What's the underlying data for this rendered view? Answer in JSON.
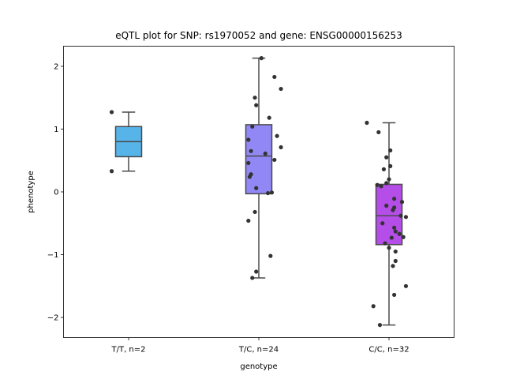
{
  "chart_data": {
    "type": "boxplot",
    "title": "eQTL plot for SNP: rs1970052 and gene: ENSG00000156253",
    "xlabel": "genotype",
    "ylabel": "phenotype",
    "ylim": [
      -2.32,
      2.32
    ],
    "yticks": [
      -2,
      -1,
      0,
      1,
      2
    ],
    "ytick_labels": [
      "−2",
      "−1",
      "0",
      "1",
      "2"
    ],
    "categories": [
      "T/T, n=2",
      "T/C, n=24",
      "C/C, n=32"
    ],
    "grid": false,
    "boxes": [
      {
        "color": "#56b4e9",
        "q1": 0.56,
        "median": 0.8,
        "q3": 1.04,
        "whisker_low": 0.33,
        "whisker_high": 1.27
      },
      {
        "color": "#9288f5",
        "q1": -0.03,
        "median": 0.57,
        "q3": 1.07,
        "whisker_low": -1.37,
        "whisker_high": 2.13
      },
      {
        "color": "#b54de8",
        "q1": -0.84,
        "median": -0.38,
        "q3": 0.12,
        "whisker_low": -2.12,
        "whisker_high": 1.1
      }
    ],
    "points": [
      [
        [
          -0.13,
          1.27
        ],
        [
          -0.13,
          0.33
        ]
      ],
      [
        [
          0.02,
          2.13
        ],
        [
          0.12,
          1.83
        ],
        [
          0.17,
          1.64
        ],
        [
          -0.03,
          1.5
        ],
        [
          -0.02,
          1.38
        ],
        [
          0.08,
          1.18
        ],
        [
          -0.05,
          1.04
        ],
        [
          0.14,
          0.89
        ],
        [
          -0.08,
          0.83
        ],
        [
          0.17,
          0.71
        ],
        [
          -0.06,
          0.65
        ],
        [
          0.05,
          0.61
        ],
        [
          0.12,
          0.51
        ],
        [
          -0.08,
          0.46
        ],
        [
          -0.06,
          0.28
        ],
        [
          -0.07,
          0.24
        ],
        [
          -0.02,
          0.06
        ],
        [
          0.07,
          -0.02
        ],
        [
          -0.03,
          -0.32
        ],
        [
          -0.08,
          -0.46
        ],
        [
          0.09,
          -1.02
        ],
        [
          -0.02,
          -1.27
        ],
        [
          -0.05,
          -1.37
        ],
        [
          0.1,
          -0.01
        ]
      ],
      [
        [
          -0.17,
          1.1
        ],
        [
          -0.08,
          0.95
        ],
        [
          0.01,
          0.66
        ],
        [
          -0.02,
          0.55
        ],
        [
          0.01,
          0.41
        ],
        [
          -0.04,
          0.36
        ],
        [
          0.0,
          0.2
        ],
        [
          -0.02,
          0.14
        ],
        [
          -0.09,
          0.11
        ],
        [
          -0.06,
          0.09
        ],
        [
          0.1,
          -0.16
        ],
        [
          0.04,
          -0.11
        ],
        [
          -0.02,
          -0.22
        ],
        [
          0.04,
          -0.25
        ],
        [
          0.03,
          -0.29
        ],
        [
          0.09,
          -0.38
        ],
        [
          0.13,
          -0.4
        ],
        [
          -0.05,
          -0.5
        ],
        [
          0.04,
          -0.57
        ],
        [
          0.05,
          -0.63
        ],
        [
          0.08,
          -0.67
        ],
        [
          0.02,
          -0.73
        ],
        [
          0.11,
          -0.72
        ],
        [
          -0.03,
          -0.82
        ],
        [
          0.0,
          -0.89
        ],
        [
          0.05,
          -0.95
        ],
        [
          0.05,
          -1.1
        ],
        [
          0.03,
          -1.18
        ],
        [
          0.13,
          -1.5
        ],
        [
          0.04,
          -1.64
        ],
        [
          -0.12,
          -1.82
        ],
        [
          -0.07,
          -2.12
        ]
      ]
    ]
  }
}
